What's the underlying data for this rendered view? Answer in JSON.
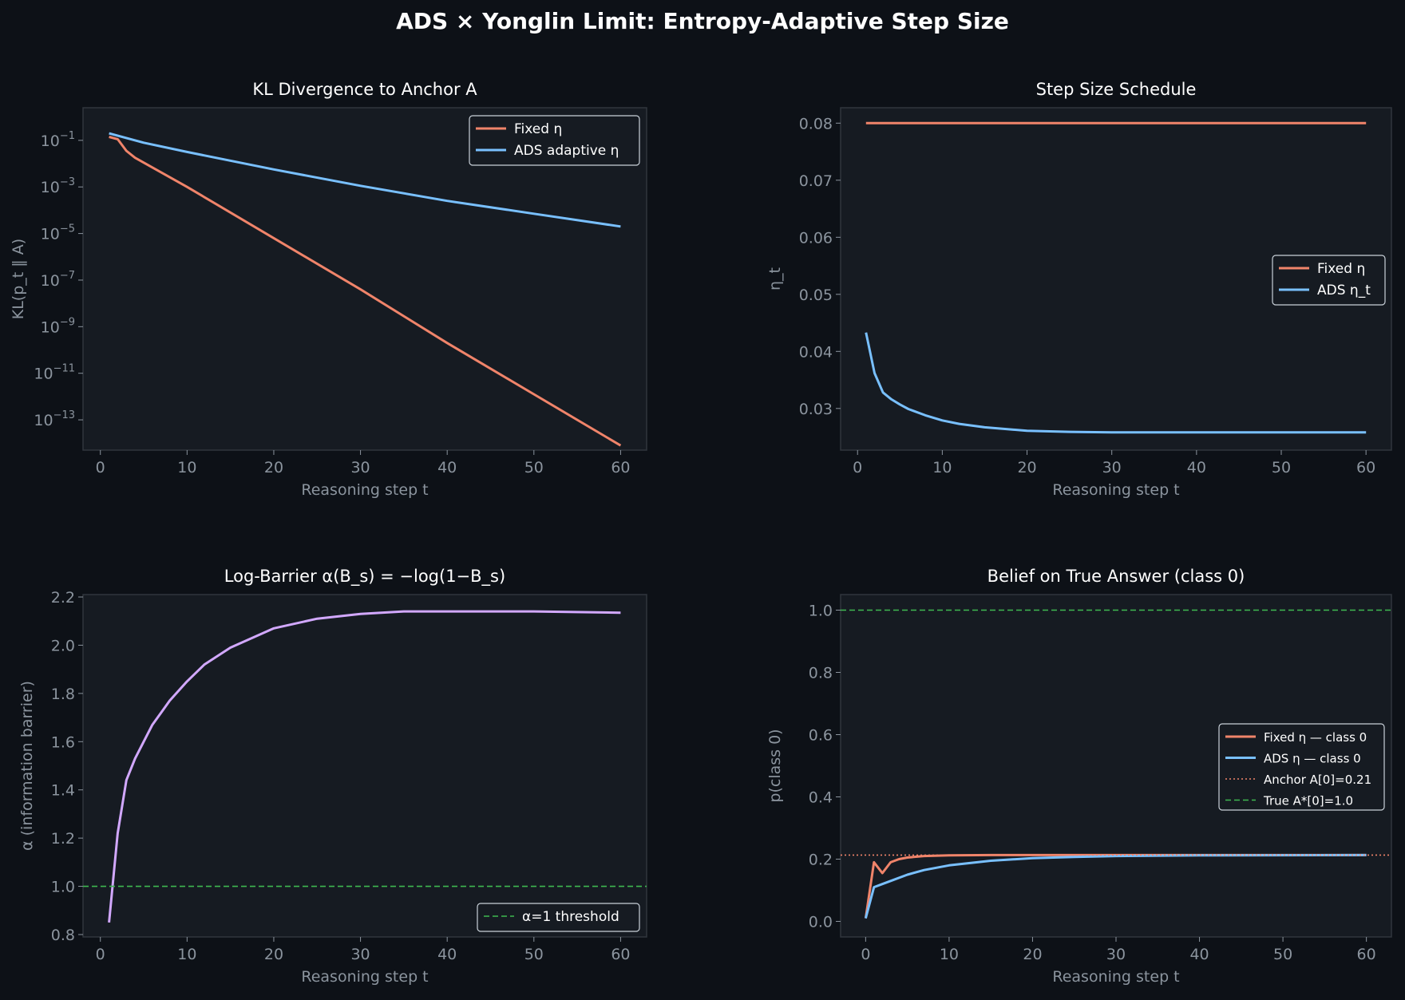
{
  "suptitle": "ADS × Yonglin Limit: Entropy-Adaptive Step Size",
  "colors": {
    "background": "#0d1117",
    "axes": "#161b22",
    "fixed": "#f0846a",
    "ads": "#79c0ff",
    "alpha": "#d2a8ff",
    "true_line": "#3fb950",
    "anchor": "#f0846a"
  },
  "chart_data": [
    {
      "id": "kl",
      "type": "line",
      "title": "KL Divergence to Anchor A",
      "xlabel": "Reasoning step t",
      "ylabel": "KL(p_t ‖ A)",
      "yscale": "log",
      "xlim": [
        -2,
        63
      ],
      "ylim_log10": [
        -14.3,
        0.4
      ],
      "xticks": [
        0,
        10,
        20,
        30,
        40,
        50,
        60
      ],
      "yticks": [
        {
          "value": -1,
          "base": "10",
          "exp": "−1"
        },
        {
          "value": -3,
          "base": "10",
          "exp": "−3"
        },
        {
          "value": -5,
          "base": "10",
          "exp": "−5"
        },
        {
          "value": -7,
          "base": "10",
          "exp": "−7"
        },
        {
          "value": -9,
          "base": "10",
          "exp": "−9"
        },
        {
          "value": -11,
          "base": "10",
          "exp": "−11"
        },
        {
          "value": -13,
          "base": "10",
          "exp": "−13"
        }
      ],
      "legend": {
        "position": "upper right"
      },
      "series": [
        {
          "name": "Fixed η",
          "color": "#f0846a",
          "style": "solid",
          "x": [
            1,
            2,
            3,
            4,
            10,
            20,
            30,
            40,
            50,
            60
          ],
          "log10_y": [
            -0.85,
            -0.95,
            -1.45,
            -1.75,
            -3.0,
            -5.2,
            -7.4,
            -9.7,
            -11.9,
            -14.1
          ]
        },
        {
          "name": "ADS adaptive η",
          "color": "#79c0ff",
          "style": "solid",
          "x": [
            1,
            5,
            10,
            20,
            30,
            40,
            50,
            60
          ],
          "log10_y": [
            -0.7,
            -1.1,
            -1.5,
            -2.25,
            -2.95,
            -3.6,
            -4.15,
            -4.7
          ]
        }
      ]
    },
    {
      "id": "eta",
      "type": "line",
      "title": "Step Size Schedule",
      "xlabel": "Reasoning step t",
      "ylabel": "η_t",
      "xlim": [
        -2,
        63
      ],
      "ylim": [
        0.0227,
        0.0827
      ],
      "xticks": [
        0,
        10,
        20,
        30,
        40,
        50,
        60
      ],
      "yticks": [
        0.03,
        0.04,
        0.05,
        0.06,
        0.07,
        0.08
      ],
      "ytick_labels": [
        "0.03",
        "0.04",
        "0.05",
        "0.06",
        "0.07",
        "0.08"
      ],
      "legend": {
        "position": "center right"
      },
      "series": [
        {
          "name": "Fixed η",
          "color": "#f0846a",
          "style": "solid",
          "x": [
            1,
            60
          ],
          "y": [
            0.08,
            0.08
          ]
        },
        {
          "name": "ADS η_t",
          "color": "#79c0ff",
          "style": "solid",
          "x": [
            1,
            2,
            3,
            4,
            5,
            6,
            8,
            10,
            12,
            15,
            20,
            25,
            30,
            40,
            50,
            60
          ],
          "y": [
            0.0433,
            0.0362,
            0.0328,
            0.0316,
            0.0307,
            0.0299,
            0.0288,
            0.0279,
            0.0273,
            0.0267,
            0.0261,
            0.0259,
            0.0258,
            0.0258,
            0.0258,
            0.0258
          ]
        }
      ]
    },
    {
      "id": "alpha",
      "type": "line",
      "title": "Log-Barrier α(B_s) = −log(1−B_s)",
      "xlabel": "Reasoning step t",
      "ylabel": "α  (information barrier)",
      "xlim": [
        -2,
        63
      ],
      "ylim": [
        0.79,
        2.21
      ],
      "xticks": [
        0,
        10,
        20,
        30,
        40,
        50,
        60
      ],
      "yticks": [
        0.8,
        1.0,
        1.2,
        1.4,
        1.6,
        1.8,
        2.0,
        2.2
      ],
      "ytick_labels": [
        "0.8",
        "1.0",
        "1.2",
        "1.4",
        "1.6",
        "1.8",
        "2.0",
        "2.2"
      ],
      "legend": {
        "position": "lower right"
      },
      "series": [
        {
          "name": "",
          "color": "#d2a8ff",
          "style": "solid",
          "x": [
            1,
            2,
            3,
            4,
            5,
            6,
            7,
            8,
            10,
            12,
            15,
            20,
            25,
            30,
            35,
            40,
            50,
            60
          ],
          "y": [
            0.85,
            1.22,
            1.44,
            1.53,
            1.6,
            1.67,
            1.72,
            1.77,
            1.85,
            1.92,
            1.99,
            2.07,
            2.11,
            2.13,
            2.14,
            2.14,
            2.14,
            2.135
          ]
        },
        {
          "name": "α=1 threshold",
          "color": "#3fb950",
          "style": "dashed",
          "x": [
            -2,
            63
          ],
          "y": [
            1.0,
            1.0
          ]
        }
      ]
    },
    {
      "id": "belief",
      "type": "line",
      "title": "Belief on True Answer (class 0)",
      "xlabel": "Reasoning step t",
      "ylabel": "p(class 0)",
      "xlim": [
        -3,
        63
      ],
      "ylim": [
        -0.05,
        1.05
      ],
      "xticks": [
        0,
        10,
        20,
        30,
        40,
        50,
        60
      ],
      "yticks": [
        0.0,
        0.2,
        0.4,
        0.6,
        0.8,
        1.0
      ],
      "ytick_labels": [
        "0.0",
        "0.2",
        "0.4",
        "0.6",
        "0.8",
        "1.0"
      ],
      "legend": {
        "position": "center right"
      },
      "series": [
        {
          "name": "Fixed η — class 0",
          "color": "#f0846a",
          "style": "solid",
          "x": [
            0,
            1,
            2,
            3,
            4,
            5,
            7,
            10,
            15,
            20,
            60
          ],
          "y": [
            0.01,
            0.19,
            0.155,
            0.19,
            0.2,
            0.205,
            0.21,
            0.212,
            0.213,
            0.213,
            0.213
          ]
        },
        {
          "name": "ADS η  — class 0",
          "color": "#79c0ff",
          "style": "solid",
          "x": [
            0,
            1,
            2,
            3,
            5,
            7,
            10,
            15,
            20,
            25,
            30,
            40,
            60
          ],
          "y": [
            0.01,
            0.11,
            0.12,
            0.13,
            0.15,
            0.165,
            0.18,
            0.195,
            0.203,
            0.207,
            0.21,
            0.212,
            0.213
          ]
        },
        {
          "name": "Anchor A[0]=0.21",
          "color": "#f0846a",
          "style": "dotted",
          "x": [
            -3,
            63
          ],
          "y": [
            0.213,
            0.213
          ]
        },
        {
          "name": "True A*[0]=1.0",
          "color": "#3fb950",
          "style": "dashed",
          "x": [
            -3,
            63
          ],
          "y": [
            1.0,
            1.0
          ]
        }
      ]
    }
  ]
}
